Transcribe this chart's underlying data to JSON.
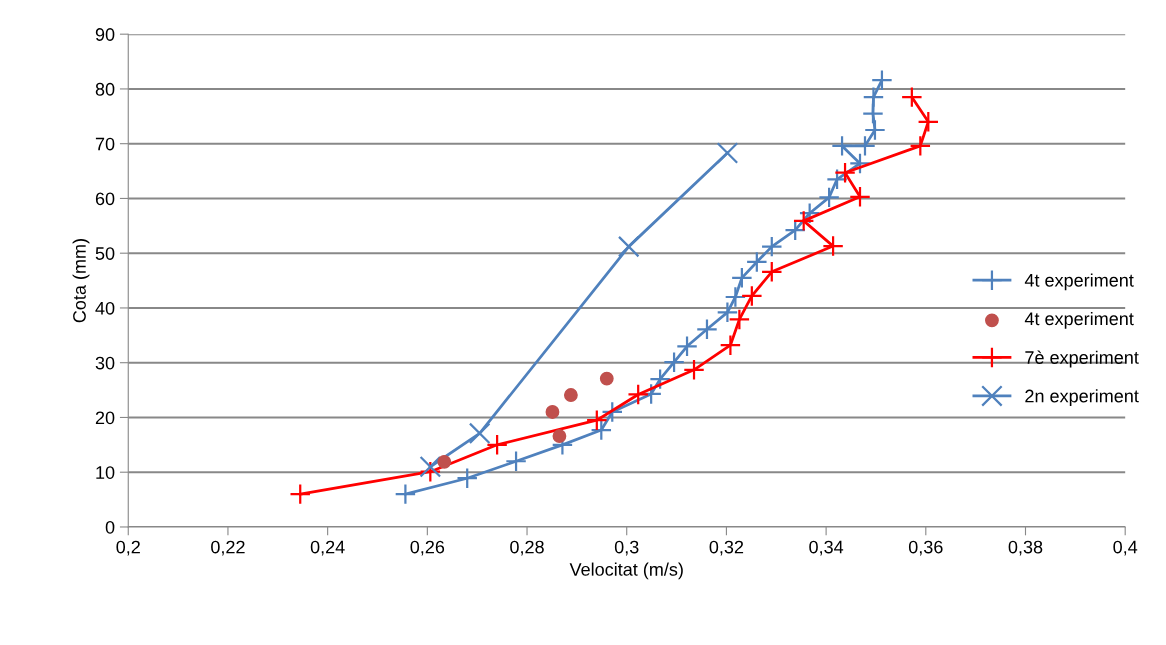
{
  "chart_data": {
    "type": "line",
    "xlabel": "Velocitat (m/s)",
    "ylabel": "Cota (mm)",
    "xlim": [
      0.2,
      0.4
    ],
    "ylim": [
      0,
      90
    ],
    "xticks": [
      {
        "value": 0.2,
        "label": "0,2"
      },
      {
        "value": 0.22,
        "label": "0,22"
      },
      {
        "value": 0.24,
        "label": "0,24"
      },
      {
        "value": 0.26,
        "label": "0,26"
      },
      {
        "value": 0.28,
        "label": "0,28"
      },
      {
        "value": 0.3,
        "label": "0,3"
      },
      {
        "value": 0.32,
        "label": "0,32"
      },
      {
        "value": 0.34,
        "label": "0,34"
      },
      {
        "value": 0.36,
        "label": "0,36"
      },
      {
        "value": 0.38,
        "label": "0,38"
      },
      {
        "value": 0.4,
        "label": "0,4"
      }
    ],
    "yticks": [
      0,
      10,
      20,
      30,
      40,
      50,
      60,
      70,
      80,
      90
    ],
    "grid": "y",
    "legend": "right",
    "series": [
      {
        "name": "4t experiment",
        "marker": "plus",
        "color": "#4f81bd",
        "x": [
          0.2556,
          0.268,
          0.2778,
          0.2871,
          0.2949,
          0.2971,
          0.3049,
          0.3067,
          0.3095,
          0.3121,
          0.3161,
          0.3202,
          0.3218,
          0.3231,
          0.3261,
          0.3291,
          0.3338,
          0.3367,
          0.3406,
          0.3422,
          0.3468,
          0.3432,
          0.3478,
          0.3498,
          0.3494,
          0.3495,
          0.3512
        ],
        "values": [
          6.0,
          8.9,
          12.0,
          15.0,
          17.7,
          21.0,
          24.3,
          27.0,
          30.1,
          33.0,
          36.1,
          39.2,
          42.0,
          45.5,
          48.4,
          51.2,
          54.2,
          57.3,
          60.2,
          63.5,
          66.4,
          69.6,
          69.6,
          72.5,
          75.5,
          78.5,
          81.6
        ]
      },
      {
        "name": "4t experiment",
        "type": "scatter",
        "marker": "circle",
        "color": "#c0504d",
        "x": [
          0.2634,
          0.2865,
          0.2851,
          0.2888,
          0.296
        ],
        "values": [
          11.9,
          16.6,
          21.0,
          24.1,
          27.1
        ]
      },
      {
        "name": "7è experiment",
        "marker": "plus",
        "color": "#ff0000",
        "x": [
          0.2345,
          0.2606,
          0.274,
          0.294,
          0.3023,
          0.3135,
          0.3208,
          0.3226,
          0.3251,
          0.3291,
          0.3414,
          0.3355,
          0.3468,
          0.3438,
          0.3589,
          0.3605,
          0.3572
        ],
        "values": [
          6.0,
          10.1,
          15.0,
          19.5,
          24.2,
          28.7,
          33.2,
          37.9,
          42.2,
          46.6,
          51.3,
          55.9,
          60.3,
          64.7,
          69.6,
          74.0,
          78.5
        ]
      },
      {
        "name": "2n experiment",
        "marker": "cross",
        "color": "#4f81bd",
        "x": [
          0.2606,
          0.2705,
          0.3004,
          0.3202
        ],
        "values": [
          11.0,
          17.1,
          51.2,
          68.3
        ]
      }
    ]
  }
}
